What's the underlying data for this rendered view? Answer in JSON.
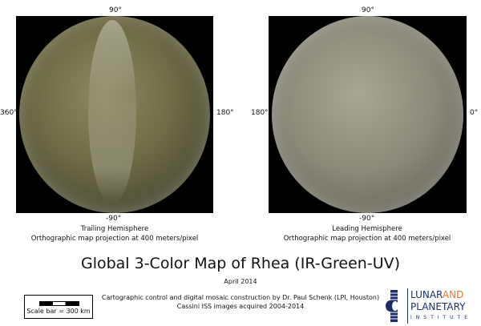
{
  "title": "Global 3-Color Map of Rhea  (IR-Green-UV)",
  "date": "April 2014",
  "credits": [
    "Cartographic control and digital mosaic construction by Dr. Paul Schenk (LPI, Houston)",
    "Cassini ISS images acquired 2004-2014"
  ],
  "scale_bar": {
    "label": "Scale bar = 300 km"
  },
  "logo": {
    "line1": "LUNAR",
    "line1b": "AND",
    "line2": "PLANETARY",
    "line3": "INSTITUTE",
    "colors": {
      "navy": "#1c2f6b",
      "orange": "#e8762b"
    }
  },
  "hemispheres": [
    {
      "name": "Trailing Hemisphere",
      "projection": "Orthographic map projection at 400 meters/pixel",
      "top": "90°",
      "bottom": "-90°",
      "left": "360°",
      "right": "180°",
      "tint": "#6d6a45"
    },
    {
      "name": "Leading Hemisphere",
      "projection": "Orthographic map projection at 400 meters/pixel",
      "top": "90°",
      "bottom": "-90°",
      "left": "180°",
      "right": "0°",
      "tint": "#8a8879"
    }
  ]
}
